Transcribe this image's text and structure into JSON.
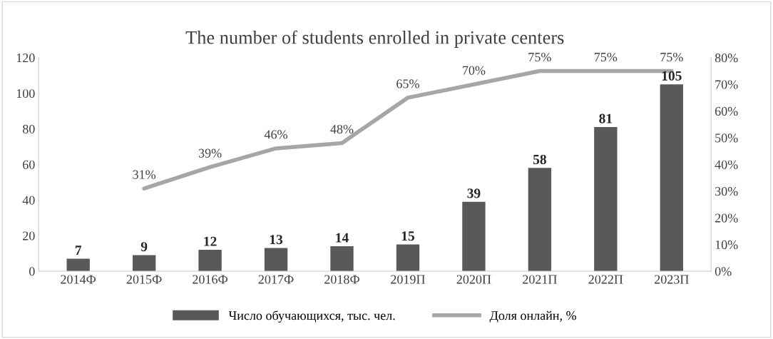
{
  "chart_data": {
    "type": "bar",
    "title": "The number of students enrolled in private centers",
    "categories": [
      "2014Ф",
      "2015Ф",
      "2016Ф",
      "2017Ф",
      "2018Ф",
      "2019П",
      "2020П",
      "2021П",
      "2022П",
      "2023П"
    ],
    "series": [
      {
        "name": "Число обучающихся, тыс. чел.",
        "color": "#595959",
        "values": [
          7,
          9,
          12,
          13,
          14,
          15,
          39,
          58,
          81,
          105
        ],
        "data_labels": true
      },
      {
        "name": "Доля онлайн, %",
        "type": "line",
        "axis": "y2",
        "color": "#a6a6a6",
        "values": [
          null,
          31,
          39,
          46,
          48,
          65,
          70,
          75,
          75,
          75
        ],
        "value_labels": [
          null,
          "31%",
          "39%",
          "46%",
          "48%",
          "65%",
          "70%",
          "75%",
          "75%",
          "75%"
        ]
      }
    ],
    "ylim": [
      0,
      120
    ],
    "yticks": [
      0,
      20,
      40,
      60,
      80,
      100,
      120
    ],
    "y2lim": [
      0,
      80
    ],
    "y2ticks": [
      {
        "value": 0,
        "label": "0%"
      },
      {
        "value": 10,
        "label": "10%"
      },
      {
        "value": 20,
        "label": "20%"
      },
      {
        "value": 30,
        "label": "30%"
      },
      {
        "value": 40,
        "label": "40%"
      },
      {
        "value": 50,
        "label": "50%"
      },
      {
        "value": 60,
        "label": "60%"
      },
      {
        "value": 70,
        "label": "70%"
      },
      {
        "value": 80,
        "label": "80%"
      }
    ],
    "grid": false,
    "legend": "bottom",
    "marker": "none",
    "line_style": "solid"
  }
}
